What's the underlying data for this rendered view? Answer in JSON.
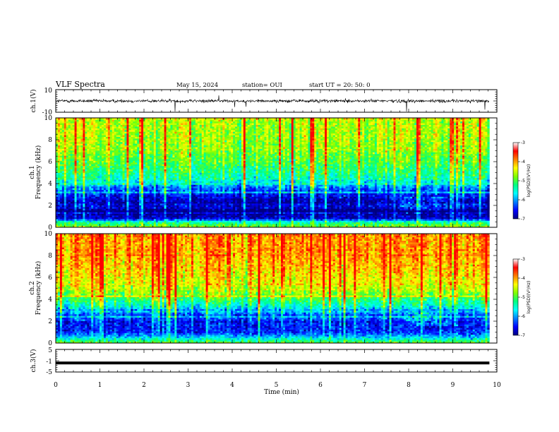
{
  "header": {
    "title": "VLF Spectra",
    "date": "May 15, 2024",
    "station": "station= OUI",
    "start": "start  UT  =   20: 50: 0"
  },
  "chart_data": [
    {
      "type": "line",
      "name": "ch1-waveform",
      "ylabel": "ch.1(V)",
      "ylim": [
        -10,
        10
      ],
      "ytick_labels": [
        "10",
        "-10"
      ],
      "baseline_v": 0,
      "noise_amplitude_v": 2.5
    },
    {
      "type": "heatmap",
      "name": "ch1-spectrogram",
      "ylabel_line1": "ch.1",
      "ylabel_line2": "Frequency (kHz)",
      "ylim_khz": [
        0,
        10
      ],
      "ytick_labels": [
        "0",
        "2",
        "4",
        "6",
        "8",
        "10"
      ],
      "x_data_end_min": 9.83,
      "profile_khz": [
        0,
        0.5,
        0.8,
        1.2,
        1.8,
        2.4,
        3.0,
        3.5,
        4.2,
        5.0,
        6.0,
        7.0,
        8.0,
        9.0,
        10.0
      ],
      "profile_log_psd": [
        -4.4,
        -5.2,
        -6.6,
        -6.9,
        -7.0,
        -6.8,
        -6.5,
        -6.1,
        -5.4,
        -5.0,
        -4.7,
        -4.5,
        -4.35,
        -4.3,
        -4.25
      ]
    },
    {
      "type": "heatmap",
      "name": "ch2-spectrogram",
      "ylabel_line1": "ch.2",
      "ylabel_line2": "Frequency (kHz)",
      "ylim_khz": [
        0,
        10
      ],
      "ytick_labels": [
        "0",
        "2",
        "4",
        "6",
        "8",
        "10"
      ],
      "x_data_end_min": 9.83,
      "profile_khz": [
        0,
        0.5,
        1.0,
        1.6,
        2.2,
        2.8,
        3.4,
        4.0,
        4.6,
        5.2,
        6.0,
        7.0,
        8.0,
        9.0,
        10.0
      ],
      "profile_log_psd": [
        -4.6,
        -5.6,
        -6.4,
        -6.5,
        -6.3,
        -6.0,
        -5.4,
        -4.9,
        -4.5,
        -4.2,
        -4.0,
        -3.8,
        -3.7,
        -3.65,
        -3.6
      ]
    },
    {
      "type": "line",
      "name": "ch3-waveform",
      "ylabel": "ch.3(V)",
      "ylim": [
        -5,
        5
      ],
      "ytick_labels": [
        "5",
        "-1",
        "-5"
      ],
      "baseline_v": -1
    }
  ],
  "xaxis": {
    "label": "Time  (min)",
    "range": [
      0,
      10
    ],
    "tick_labels": [
      "0",
      "1",
      "2",
      "3",
      "4",
      "5",
      "6",
      "7",
      "8",
      "9",
      "10"
    ]
  },
  "colorbar": {
    "label": "log(PSD)(V²/Hz)",
    "range": [
      -7,
      -3
    ],
    "tick_labels": [
      "-3",
      "-4",
      "-5",
      "-6",
      "-7"
    ],
    "stops": [
      "#000080",
      "#0000ff",
      "#0080ff",
      "#00ffff",
      "#00ff80",
      "#80ff00",
      "#ffff00",
      "#ff8000",
      "#ff0000",
      "#ffffff"
    ]
  }
}
